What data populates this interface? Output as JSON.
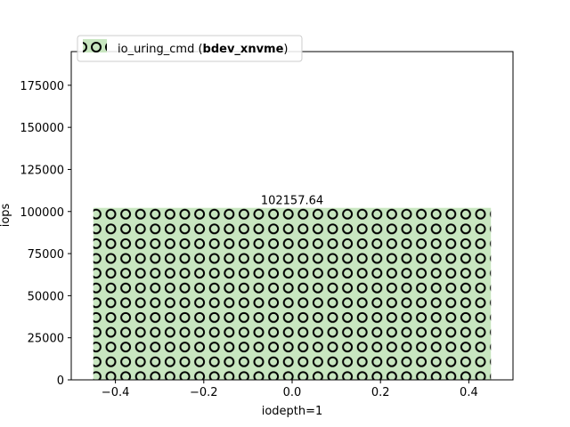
{
  "chart_data": {
    "type": "bar",
    "title": "",
    "xlabel": "iodepth=1",
    "ylabel": "iops",
    "xlim": [
      -0.5,
      0.5
    ],
    "ylim": [
      0,
      195000
    ],
    "xticks": [
      -0.4,
      -0.2,
      0.0,
      0.2,
      0.4
    ],
    "xtick_labels": [
      "−0.4",
      "−0.2",
      "0.0",
      "0.2",
      "0.4"
    ],
    "yticks": [
      0,
      25000,
      50000,
      75000,
      100000,
      125000,
      150000,
      175000
    ],
    "ytick_labels": [
      "0",
      "25000",
      "50000",
      "75000",
      "100000",
      "125000",
      "150000",
      "175000"
    ],
    "grid": false,
    "legend_position": "top-left",
    "series": [
      {
        "name_prefix": "io_uring_cmd (",
        "name_bold": "bdev_xnvme",
        "name_suffix": ")",
        "color": "#c8e6c0",
        "hatch": "circles",
        "bars": [
          {
            "x": 0,
            "width": 0.9,
            "value": 102157.64,
            "label": "102157.64"
          }
        ]
      }
    ]
  }
}
